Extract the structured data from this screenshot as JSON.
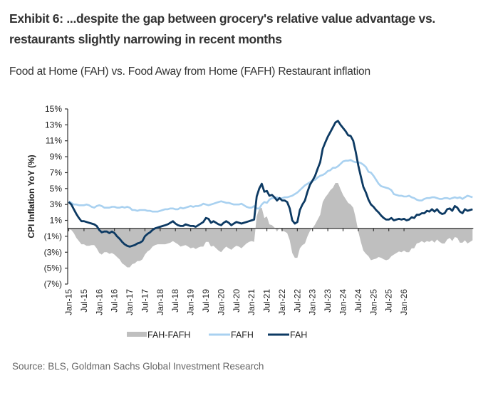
{
  "header": {
    "exhibit_title": "Exhibit 6: ...despite the gap between grocery's relative value advantage vs. restaurants slightly narrowing in recent months",
    "subtitle": "Food at Home (FAH) vs. Food Away from Home (FAFH) Restaurant inflation"
  },
  "footer": {
    "source": "Source: BLS, Goldman Sachs Global Investment Research"
  },
  "chart_data": {
    "type": "line",
    "title": "Food at Home (FAH) vs. Food Away from Home (FAFH) Restaurant inflation",
    "xlabel": "",
    "ylabel": "CPI Inflation YoY (%)",
    "ylim": [
      -7,
      15
    ],
    "yticks": [
      15,
      13,
      11,
      9,
      7,
      5,
      3,
      1,
      -1,
      -3,
      -5,
      -7
    ],
    "ytick_labels": [
      "15%",
      "13%",
      "11%",
      "9%",
      "7%",
      "5%",
      "3%",
      "1%",
      "(1%)",
      "(3%)",
      "(5%)",
      "(7%)"
    ],
    "x_start": "Jan-15",
    "x_frequency": "monthly",
    "xtick_labels": [
      "Jan-15",
      "Jul-15",
      "Jan-16",
      "Jul-16",
      "Jan-17",
      "Jul-17",
      "Jan-18",
      "Jul-18",
      "Jan-19",
      "Jul-19",
      "Jan-20",
      "Jul-20",
      "Jan-21",
      "Jul-21",
      "Jan-22",
      "Jul-22",
      "Jan-23",
      "Jul-23",
      "Jan-24",
      "Jul-24",
      "Jan-25",
      "Jul-25",
      "Jan-26"
    ],
    "grid": false,
    "legend_position": "bottom-center",
    "legend": [
      {
        "name": "FAH-FAFH",
        "style": "area",
        "color": "#BFBFBF"
      },
      {
        "name": "FAFH",
        "style": "line",
        "color": "#A9D1F0"
      },
      {
        "name": "FAH",
        "style": "line",
        "color": "#0D3A63"
      }
    ],
    "series": [
      {
        "name": "FAH",
        "color": "#0D3A63",
        "values": [
          3.3,
          3.0,
          2.4,
          1.8,
          1.3,
          0.9,
          0.9,
          0.8,
          0.7,
          0.6,
          0.5,
          0.3,
          -0.2,
          -0.5,
          -0.4,
          -0.4,
          -0.6,
          -0.4,
          -0.6,
          -1.0,
          -1.3,
          -1.7,
          -2.0,
          -2.2,
          -2.3,
          -2.2,
          -2.1,
          -1.9,
          -1.8,
          -1.6,
          -1.0,
          -0.7,
          -0.5,
          -0.2,
          0.0,
          0.1,
          0.2,
          0.3,
          0.4,
          0.5,
          0.7,
          0.9,
          0.6,
          0.4,
          0.3,
          0.3,
          0.5,
          0.4,
          0.3,
          0.3,
          0.2,
          0.4,
          0.6,
          0.8,
          1.3,
          1.2,
          0.7,
          0.9,
          0.7,
          0.5,
          0.4,
          0.7,
          0.9,
          0.7,
          0.4,
          0.6,
          0.8,
          0.7,
          0.6,
          0.7,
          0.8,
          0.9,
          1.0,
          1.1,
          4.0,
          5.0,
          5.6,
          4.6,
          4.7,
          4.1,
          4.2,
          3.9,
          3.5,
          3.8,
          3.5,
          3.5,
          3.3,
          2.5,
          1.0,
          0.6,
          0.8,
          2.3,
          3.0,
          3.5,
          4.6,
          5.5,
          6.0,
          6.6,
          7.5,
          8.3,
          10.0,
          10.8,
          11.5,
          12.1,
          12.7,
          13.3,
          13.5,
          13.0,
          12.6,
          12.2,
          11.7,
          11.6,
          11.0,
          9.6,
          7.9,
          6.5,
          5.2,
          4.5,
          3.6,
          3.0,
          2.7,
          2.3,
          2.0,
          1.6,
          1.3,
          1.1,
          1.1,
          1.3,
          1.0,
          1.1,
          1.2,
          1.1,
          1.2,
          1.0,
          1.1,
          1.4,
          1.3,
          1.7,
          1.7,
          1.9,
          1.9,
          2.2,
          2.1,
          2.4,
          2.1,
          2.4,
          2.0,
          1.8,
          1.9,
          2.4,
          2.5,
          2.2,
          2.8,
          2.6,
          2.1,
          1.9,
          2.4,
          2.2,
          2.3,
          2.4
        ]
      },
      {
        "name": "FAFH",
        "color": "#A9D1F0",
        "values": [
          3.4,
          3.2,
          3.0,
          3.0,
          2.9,
          2.9,
          2.9,
          3.0,
          2.9,
          2.7,
          2.6,
          2.8,
          2.9,
          2.8,
          2.6,
          2.6,
          2.6,
          2.7,
          2.7,
          2.6,
          2.6,
          2.7,
          2.6,
          2.7,
          2.6,
          2.3,
          2.3,
          2.2,
          2.3,
          2.3,
          2.3,
          2.2,
          2.2,
          2.1,
          2.1,
          2.1,
          2.2,
          2.3,
          2.4,
          2.4,
          2.5,
          2.5,
          2.4,
          2.4,
          2.6,
          2.5,
          2.6,
          2.7,
          2.8,
          2.7,
          2.8,
          2.8,
          2.9,
          3.1,
          3.0,
          2.9,
          3.0,
          3.1,
          3.2,
          3.3,
          3.4,
          3.3,
          3.2,
          3.2,
          3.1,
          3.0,
          3.0,
          3.0,
          3.1,
          2.9,
          2.7,
          2.6,
          2.6,
          2.8,
          2.5,
          2.5,
          3.0,
          3.3,
          3.2,
          3.6,
          3.8,
          3.8,
          3.9,
          3.7,
          3.8,
          3.9,
          3.9,
          4.0,
          4.1,
          4.3,
          4.5,
          4.8,
          5.1,
          5.4,
          5.6,
          5.8,
          6.0,
          6.1,
          6.4,
          6.6,
          6.7,
          6.9,
          7.2,
          7.3,
          7.6,
          7.6,
          7.8,
          8.1,
          8.4,
          8.5,
          8.5,
          8.6,
          8.4,
          8.3,
          8.3,
          8.2,
          8.0,
          7.7,
          7.1,
          7.0,
          6.6,
          6.1,
          5.6,
          5.3,
          5.2,
          5.1,
          5.0,
          4.8,
          4.3,
          4.2,
          4.1,
          4.1,
          4.0,
          4.0,
          4.1,
          3.9,
          3.8,
          3.6,
          3.5,
          3.5,
          3.7,
          3.8,
          3.8,
          3.9,
          3.9,
          3.8,
          3.7,
          3.7,
          3.8,
          3.8,
          3.7,
          3.8,
          3.9,
          3.8,
          3.9,
          3.7,
          3.9,
          4.1,
          4.0,
          3.9,
          3.9
        ]
      }
    ],
    "derived_series": {
      "name": "FAH-FAFH",
      "formula": "FAH - FAFH",
      "style": "area",
      "color": "#BFBFBF"
    }
  }
}
